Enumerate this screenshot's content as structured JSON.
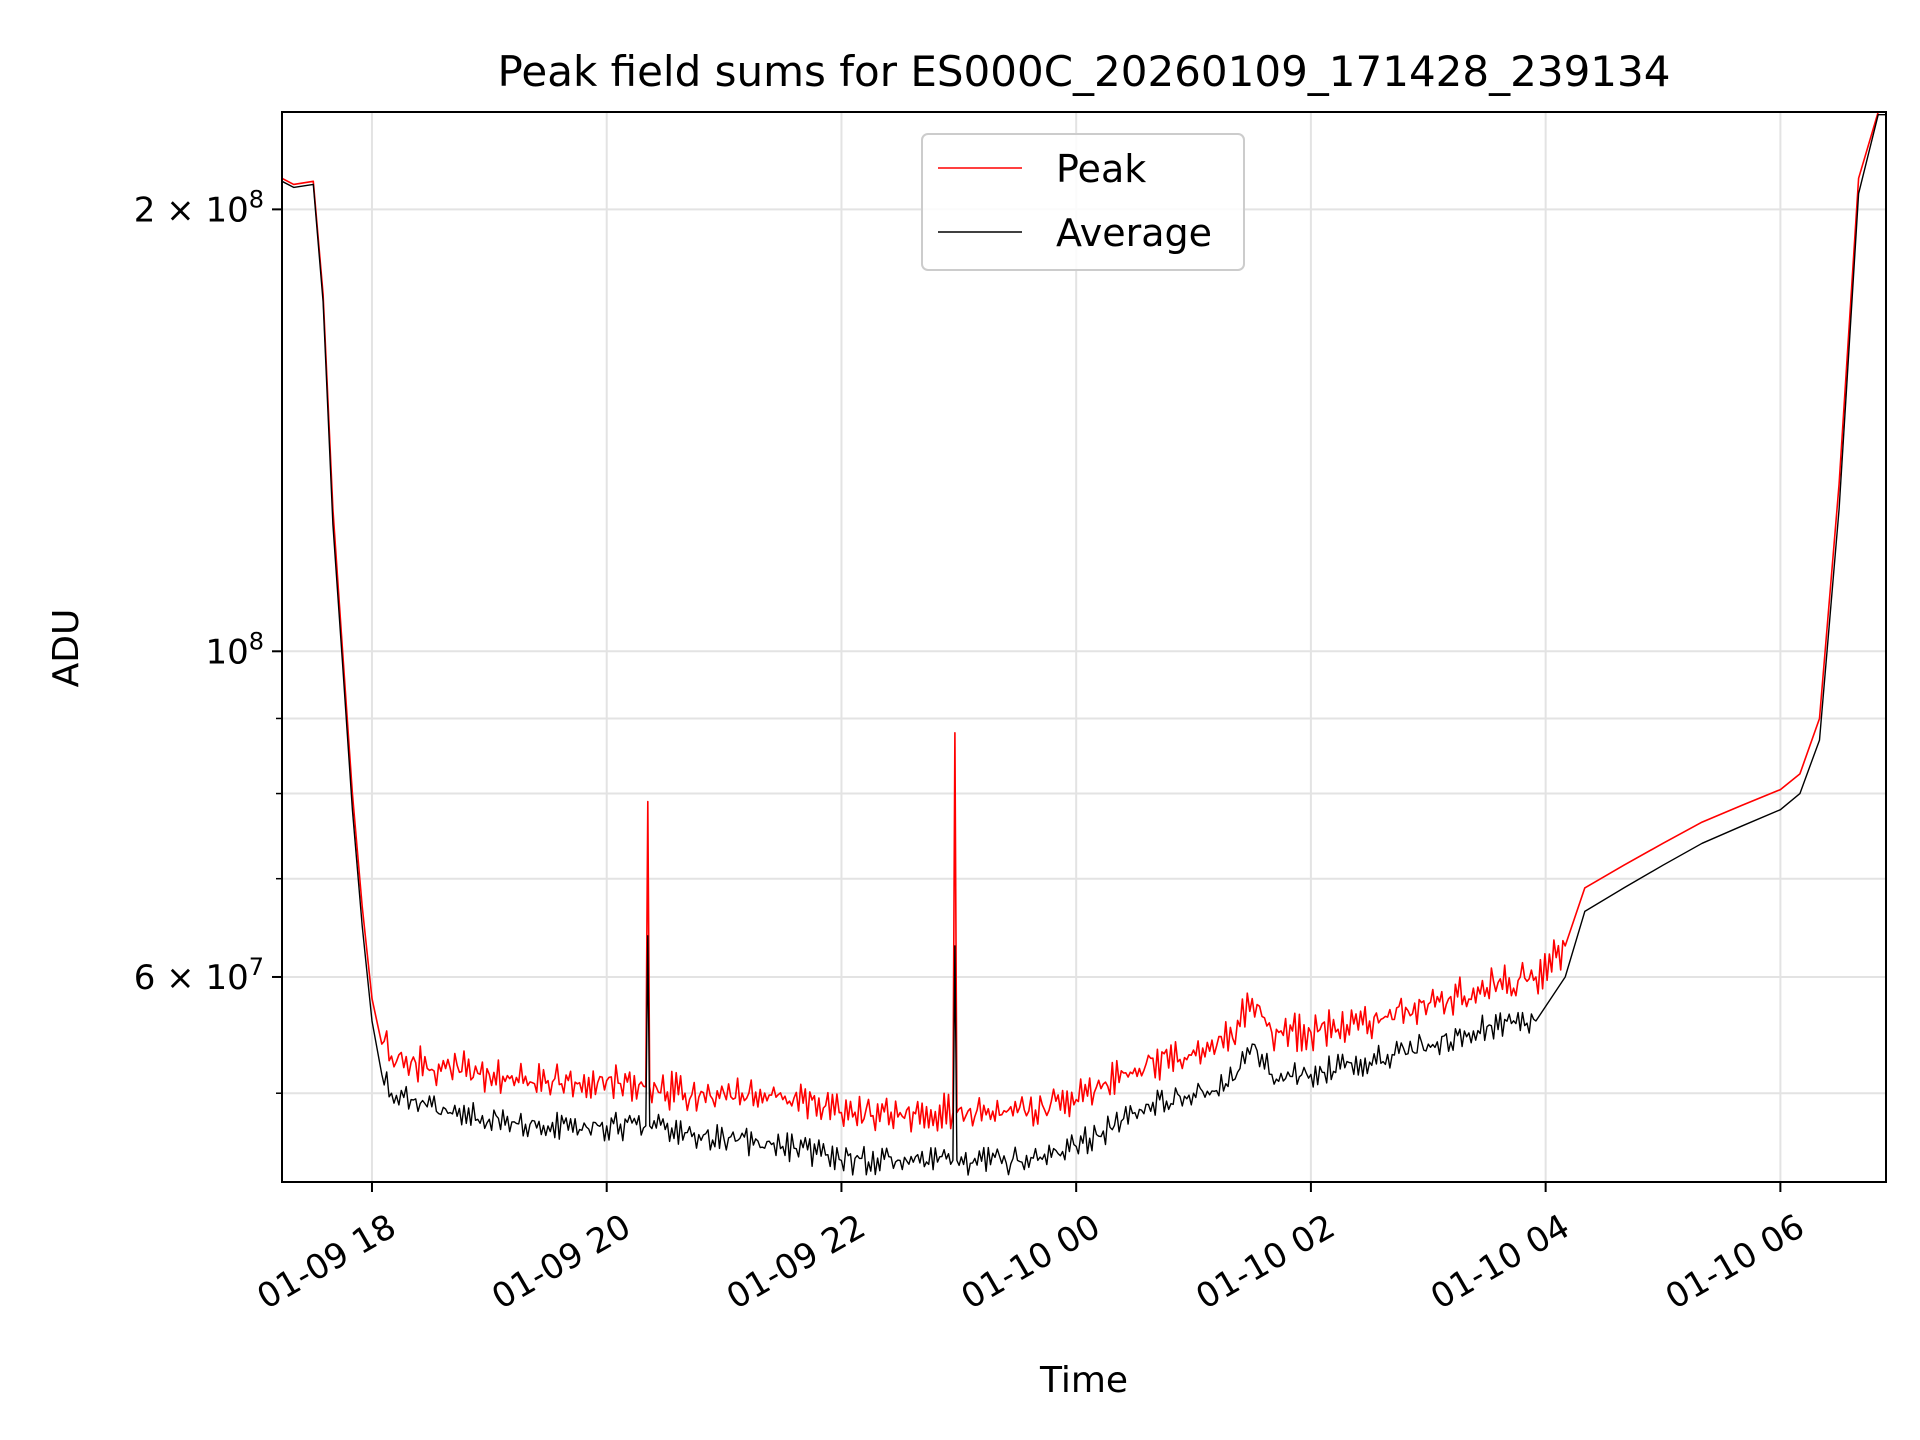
{
  "chart_data": {
    "type": "line",
    "title": "Peak field sums for ES000C_20260109_171428_239134",
    "xlabel": "Time",
    "ylabel": "ADU",
    "y_scale": "log",
    "ylim": [
      43500000,
      233000000
    ],
    "xlim": [
      "2026-01-09 17:14",
      "2026-01-10 06:54"
    ],
    "grid": true,
    "legend_position": "top-center",
    "x_ticks": [
      {
        "label": "01-09 18",
        "value": "2026-01-09 18:00"
      },
      {
        "label": "01-09 20",
        "value": "2026-01-09 20:00"
      },
      {
        "label": "01-09 22",
        "value": "2026-01-09 22:00"
      },
      {
        "label": "01-10 00",
        "value": "2026-01-10 00:00"
      },
      {
        "label": "01-10 02",
        "value": "2026-01-10 02:00"
      },
      {
        "label": "01-10 04",
        "value": "2026-01-10 04:00"
      },
      {
        "label": "01-10 06",
        "value": "2026-01-10 06:00"
      }
    ],
    "y_ticks": [
      {
        "label": "6 × 10⁷",
        "mantissa": "6",
        "exp": "7",
        "value": 60000000
      },
      {
        "label": "10⁸",
        "mantissa": "",
        "exp": "8",
        "value": 100000000
      },
      {
        "label": "2 × 10⁸",
        "mantissa": "2",
        "exp": "8",
        "value": 200000000
      }
    ],
    "y_minor_ticks": [
      50000000,
      70000000,
      80000000,
      90000000
    ],
    "series": [
      {
        "name": "Peak",
        "color": "#ff0000",
        "x": [
          "2026-01-09 17:14",
          "2026-01-09 17:20",
          "2026-01-09 17:30",
          "2026-01-09 17:35",
          "2026-01-09 17:40",
          "2026-01-09 17:45",
          "2026-01-09 17:50",
          "2026-01-09 17:55",
          "2026-01-09 18:00",
          "2026-01-09 18:05",
          "2026-01-09 18:10",
          "2026-01-09 18:20",
          "2026-01-09 18:40",
          "2026-01-09 19:00",
          "2026-01-09 19:30",
          "2026-01-09 20:00",
          "2026-01-09 20:20",
          "2026-01-09 20:21",
          "2026-01-09 20:22",
          "2026-01-09 20:40",
          "2026-01-09 21:00",
          "2026-01-09 21:30",
          "2026-01-09 22:00",
          "2026-01-09 22:30",
          "2026-01-09 22:57",
          "2026-01-09 22:58",
          "2026-01-09 22:59",
          "2026-01-09 23:30",
          "2026-01-10 00:00",
          "2026-01-10 00:30",
          "2026-01-10 01:00",
          "2026-01-10 01:20",
          "2026-01-10 01:30",
          "2026-01-10 01:40",
          "2026-01-10 02:00",
          "2026-01-10 02:30",
          "2026-01-10 03:00",
          "2026-01-10 03:30",
          "2026-01-10 03:55",
          "2026-01-10 04:10",
          "2026-01-10 04:20",
          "2026-01-10 04:40",
          "2026-01-10 05:00",
          "2026-01-10 05:20",
          "2026-01-10 05:40",
          "2026-01-10 06:00",
          "2026-01-10 06:10",
          "2026-01-10 06:20",
          "2026-01-10 06:30",
          "2026-01-10 06:40",
          "2026-01-10 06:50",
          "2026-01-10 06:54"
        ],
        "values": [
          210000000,
          208000000,
          209000000,
          175000000,
          125000000,
          100000000,
          80000000,
          67000000,
          58000000,
          54000000,
          53000000,
          52500000,
          52000000,
          51500000,
          51000000,
          51000000,
          50500000,
          79000000,
          50500000,
          50000000,
          50000000,
          49500000,
          48500000,
          48500000,
          48500000,
          88000000,
          48500000,
          48500000,
          49500000,
          52000000,
          53500000,
          54500000,
          58000000,
          55000000,
          55000000,
          56000000,
          57500000,
          59000000,
          60000000,
          63000000,
          69000000,
          71500000,
          74000000,
          76500000,
          78500000,
          80500000,
          82500000,
          90000000,
          130000000,
          210000000,
          233000000,
          233000000
        ]
      },
      {
        "name": "Average",
        "color": "#000000",
        "x": [
          "2026-01-09 17:14",
          "2026-01-09 17:20",
          "2026-01-09 17:30",
          "2026-01-09 17:35",
          "2026-01-09 17:40",
          "2026-01-09 17:45",
          "2026-01-09 17:50",
          "2026-01-09 17:55",
          "2026-01-09 18:00",
          "2026-01-09 18:05",
          "2026-01-09 18:10",
          "2026-01-09 18:20",
          "2026-01-09 18:40",
          "2026-01-09 19:00",
          "2026-01-09 19:30",
          "2026-01-09 20:00",
          "2026-01-09 20:20",
          "2026-01-09 20:21",
          "2026-01-09 20:22",
          "2026-01-09 20:40",
          "2026-01-09 21:00",
          "2026-01-09 21:30",
          "2026-01-09 22:00",
          "2026-01-09 22:30",
          "2026-01-09 22:57",
          "2026-01-09 22:58",
          "2026-01-09 22:59",
          "2026-01-09 23:30",
          "2026-01-10 00:00",
          "2026-01-10 00:30",
          "2026-01-10 01:00",
          "2026-01-10 01:20",
          "2026-01-10 01:30",
          "2026-01-10 01:40",
          "2026-01-10 02:00",
          "2026-01-10 02:30",
          "2026-01-10 03:00",
          "2026-01-10 03:30",
          "2026-01-10 03:55",
          "2026-01-10 04:10",
          "2026-01-10 04:20",
          "2026-01-10 04:40",
          "2026-01-10 05:00",
          "2026-01-10 05:20",
          "2026-01-10 05:40",
          "2026-01-10 06:00",
          "2026-01-10 06:10",
          "2026-01-10 06:20",
          "2026-01-10 06:30",
          "2026-01-10 06:40",
          "2026-01-10 06:50",
          "2026-01-10 06:54"
        ],
        "values": [
          209000000,
          207000000,
          208000000,
          173000000,
          122000000,
          98000000,
          78000000,
          65000000,
          56000000,
          51500000,
          50000000,
          49500000,
          48500000,
          48000000,
          47500000,
          47500000,
          47500000,
          64000000,
          47500000,
          47000000,
          46500000,
          46000000,
          45000000,
          45000000,
          45000000,
          63000000,
          45000000,
          45000000,
          46000000,
          48500000,
          50000000,
          51000000,
          54000000,
          51500000,
          51500000,
          52500000,
          54000000,
          55500000,
          56000000,
          60000000,
          66500000,
          69000000,
          71500000,
          74000000,
          76000000,
          78000000,
          80000000,
          87000000,
          125000000,
          205000000,
          232000000,
          232000000
        ]
      }
    ]
  }
}
